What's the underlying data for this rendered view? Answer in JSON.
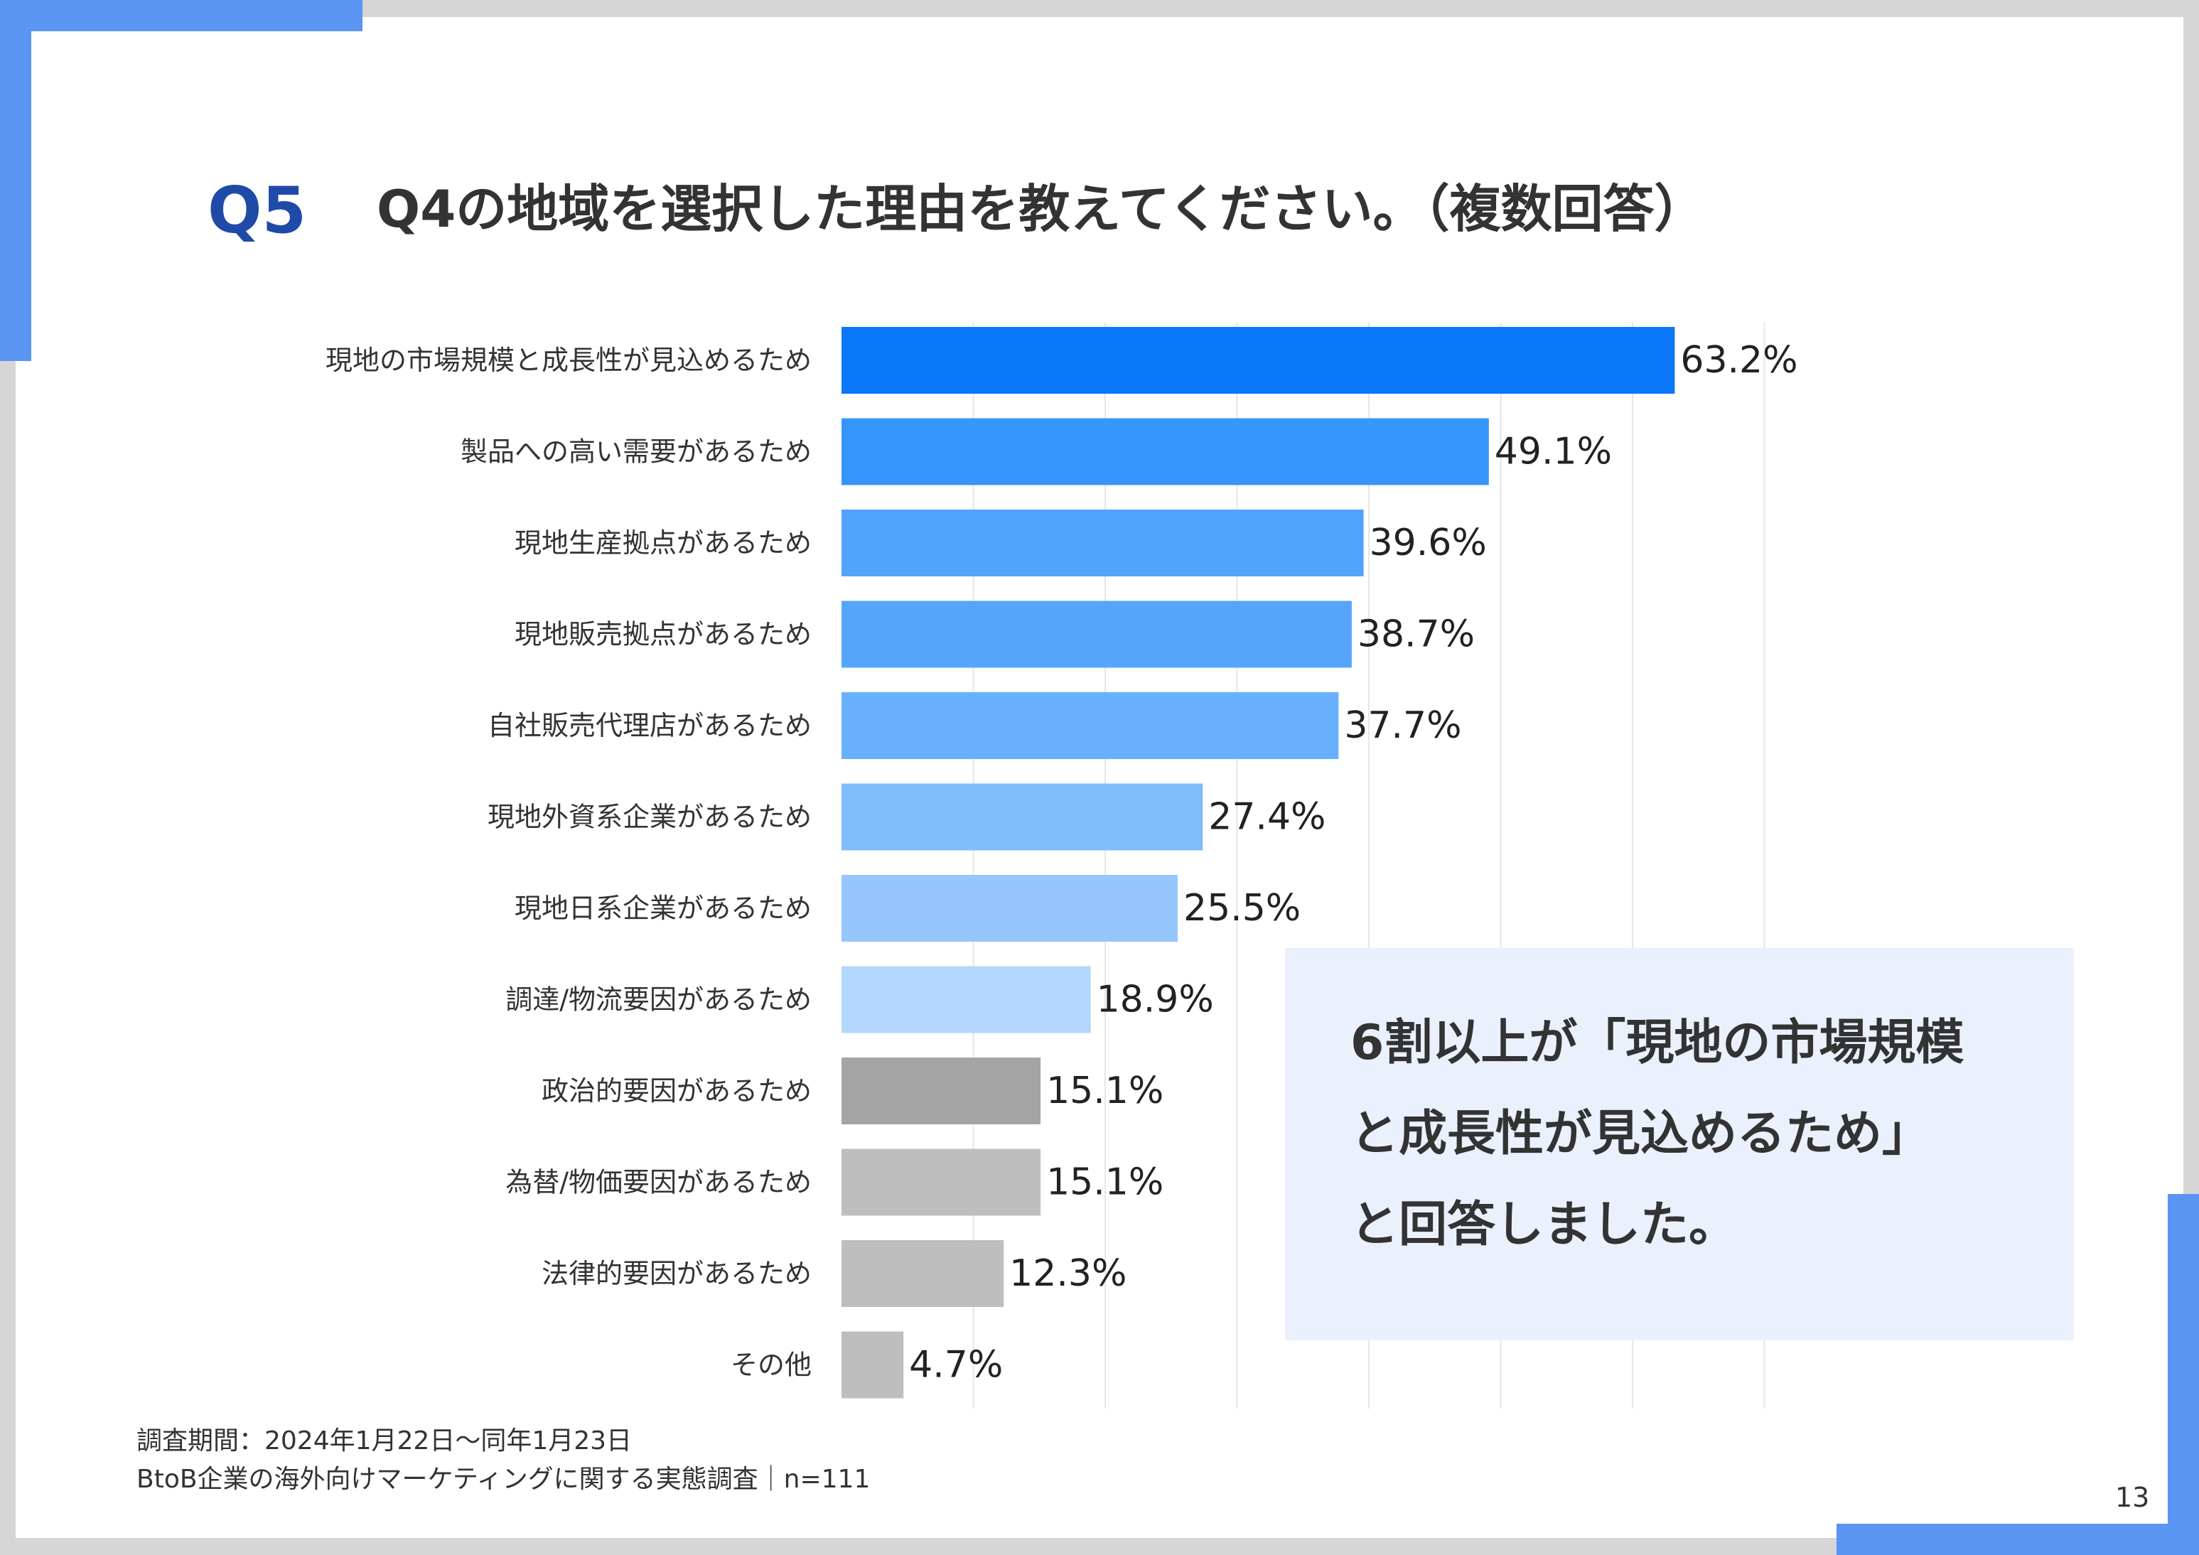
{
  "header": {
    "question_number": "Q5",
    "title": "Q4の地域を選択した理由を教えてください。（複数回答）"
  },
  "chart_data": {
    "type": "bar",
    "orientation": "horizontal",
    "title": "",
    "xlabel": "",
    "ylabel": "",
    "xlim": [
      0,
      70
    ],
    "grid": true,
    "categories": [
      "現地の市場規模と成長性が見込めるため",
      "製品への高い需要があるため",
      "現地生産拠点があるため",
      "現地販売拠点があるため",
      "自社販売代理店があるため",
      "現地外資系企業があるため",
      "現地日系企業があるため",
      "調達/物流要因があるため",
      "政治的要因があるため",
      "為替/物価要因があるため",
      "法律的要因があるため",
      "その他"
    ],
    "values": [
      63.2,
      49.1,
      39.6,
      38.7,
      37.7,
      27.4,
      25.5,
      18.9,
      15.1,
      15.1,
      12.3,
      4.7
    ],
    "value_labels": [
      "63.2%",
      "49.1%",
      "39.6%",
      "38.7%",
      "37.7%",
      "27.4%",
      "25.5%",
      "18.9%",
      "15.1%",
      "15.1%",
      "12.3%",
      "4.7%"
    ],
    "colors": [
      "#0a77f9",
      "#3696fb",
      "#51a3fb",
      "#55a6fb",
      "#68b0fc",
      "#80bcfc",
      "#95c7fd",
      "#b2d6fd",
      "#a4a4a4",
      "#bebebe",
      "#bebebe",
      "#bebebe"
    ]
  },
  "callout": {
    "lines": [
      "6割以上が「現地の市場規模",
      "と成長性が見込めるため」",
      "と回答しました。"
    ]
  },
  "footer": {
    "survey_period": "調査期間：2024年1月22日〜同年1月23日",
    "survey_name": "BtoB企業の海外向けマーケティングに関する実態調査｜n=111",
    "page_number": "13"
  },
  "theme": {
    "accent": "#5b95f4",
    "title_blue": "#1f4aa8",
    "callout_bg": "#eaf1fd"
  }
}
